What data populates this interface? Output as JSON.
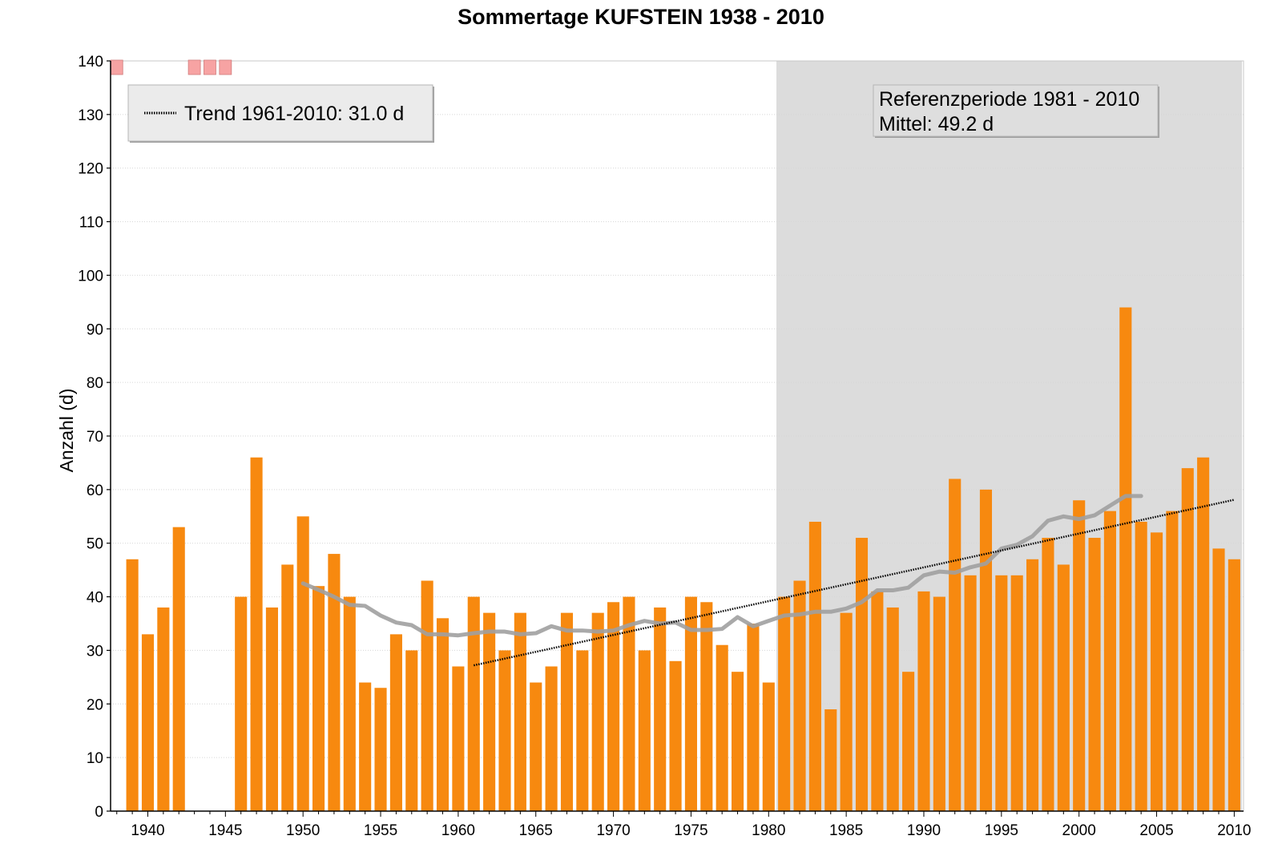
{
  "chart_data": {
    "type": "bar",
    "title": "Sommertage KUFSTEIN 1938 - 2010",
    "ylabel": "Anzahl (d)",
    "xlabel": "",
    "xlim": [
      1937.6,
      2010.6
    ],
    "ylim": [
      0,
      140
    ],
    "yticks": [
      0,
      10,
      20,
      30,
      40,
      50,
      60,
      70,
      80,
      90,
      100,
      110,
      120,
      130,
      140
    ],
    "xticks": [
      1940,
      1945,
      1950,
      1955,
      1960,
      1965,
      1970,
      1975,
      1980,
      1985,
      1990,
      1995,
      2000,
      2005,
      2010
    ],
    "grid": true,
    "bar_color": "#f7890f",
    "missing_color": "#f7a3a3",
    "missing_years": [
      1938,
      1943,
      1944,
      1945
    ],
    "reference_period": {
      "from": 1981,
      "to": 2010,
      "label": "Referenzperiode 1981 - 2010",
      "mean_label": "Mittel: 49.2 d",
      "shade_color": "#dcdcdc"
    },
    "legend": {
      "label": "Trend 1961-2010: 31.0 d",
      "position": "top-left"
    },
    "bars": [
      {
        "x": 1939,
        "y": 47
      },
      {
        "x": 1940,
        "y": 33
      },
      {
        "x": 1941,
        "y": 38
      },
      {
        "x": 1942,
        "y": 53
      },
      {
        "x": 1946,
        "y": 40
      },
      {
        "x": 1947,
        "y": 66
      },
      {
        "x": 1948,
        "y": 38
      },
      {
        "x": 1949,
        "y": 46
      },
      {
        "x": 1950,
        "y": 55
      },
      {
        "x": 1951,
        "y": 42
      },
      {
        "x": 1952,
        "y": 48
      },
      {
        "x": 1953,
        "y": 40
      },
      {
        "x": 1954,
        "y": 24
      },
      {
        "x": 1955,
        "y": 23
      },
      {
        "x": 1956,
        "y": 33
      },
      {
        "x": 1957,
        "y": 30
      },
      {
        "x": 1958,
        "y": 43
      },
      {
        "x": 1959,
        "y": 36
      },
      {
        "x": 1960,
        "y": 27
      },
      {
        "x": 1961,
        "y": 40
      },
      {
        "x": 1962,
        "y": 37
      },
      {
        "x": 1963,
        "y": 30
      },
      {
        "x": 1964,
        "y": 37
      },
      {
        "x": 1965,
        "y": 24
      },
      {
        "x": 1966,
        "y": 27
      },
      {
        "x": 1967,
        "y": 37
      },
      {
        "x": 1968,
        "y": 30
      },
      {
        "x": 1969,
        "y": 37
      },
      {
        "x": 1970,
        "y": 39
      },
      {
        "x": 1971,
        "y": 40
      },
      {
        "x": 1972,
        "y": 30
      },
      {
        "x": 1973,
        "y": 38
      },
      {
        "x": 1974,
        "y": 28
      },
      {
        "x": 1975,
        "y": 40
      },
      {
        "x": 1976,
        "y": 39
      },
      {
        "x": 1977,
        "y": 31
      },
      {
        "x": 1978,
        "y": 26
      },
      {
        "x": 1979,
        "y": 35
      },
      {
        "x": 1980,
        "y": 24
      },
      {
        "x": 1981,
        "y": 40
      },
      {
        "x": 1982,
        "y": 43
      },
      {
        "x": 1983,
        "y": 54
      },
      {
        "x": 1984,
        "y": 19
      },
      {
        "x": 1985,
        "y": 37
      },
      {
        "x": 1986,
        "y": 51
      },
      {
        "x": 1987,
        "y": 41
      },
      {
        "x": 1988,
        "y": 38
      },
      {
        "x": 1989,
        "y": 26
      },
      {
        "x": 1990,
        "y": 41
      },
      {
        "x": 1991,
        "y": 40
      },
      {
        "x": 1992,
        "y": 62
      },
      {
        "x": 1993,
        "y": 44
      },
      {
        "x": 1994,
        "y": 60
      },
      {
        "x": 1995,
        "y": 44
      },
      {
        "x": 1996,
        "y": 44
      },
      {
        "x": 1997,
        "y": 47
      },
      {
        "x": 1998,
        "y": 51
      },
      {
        "x": 1999,
        "y": 46
      },
      {
        "x": 2000,
        "y": 58
      },
      {
        "x": 2001,
        "y": 51
      },
      {
        "x": 2002,
        "y": 56
      },
      {
        "x": 2003,
        "y": 94
      },
      {
        "x": 2004,
        "y": 54
      },
      {
        "x": 2005,
        "y": 52
      },
      {
        "x": 2006,
        "y": 56
      },
      {
        "x": 2007,
        "y": 64
      },
      {
        "x": 2008,
        "y": 66
      },
      {
        "x": 2009,
        "y": 49
      },
      {
        "x": 2010,
        "y": 47
      }
    ],
    "smoothed": {
      "color": "#a0a0a0",
      "points": [
        [
          1950,
          42.5
        ],
        [
          1951,
          41.3
        ],
        [
          1952,
          40.0
        ],
        [
          1953,
          38.5
        ],
        [
          1954,
          38.3
        ],
        [
          1955,
          36.5
        ],
        [
          1956,
          35.2
        ],
        [
          1957,
          34.7
        ],
        [
          1958,
          33.0
        ],
        [
          1959,
          33.0
        ],
        [
          1960,
          32.8
        ],
        [
          1961,
          33.2
        ],
        [
          1962,
          33.5
        ],
        [
          1963,
          33.5
        ],
        [
          1964,
          33.0
        ],
        [
          1965,
          33.2
        ],
        [
          1966,
          34.5
        ],
        [
          1967,
          33.7
        ],
        [
          1968,
          33.7
        ],
        [
          1969,
          33.5
        ],
        [
          1970,
          33.7
        ],
        [
          1971,
          34.7
        ],
        [
          1972,
          35.5
        ],
        [
          1973,
          35.0
        ],
        [
          1974,
          35.2
        ],
        [
          1975,
          33.8
        ],
        [
          1976,
          33.8
        ],
        [
          1977,
          34.0
        ],
        [
          1978,
          36.2
        ],
        [
          1979,
          34.5
        ],
        [
          1980,
          35.5
        ],
        [
          1981,
          36.5
        ],
        [
          1982,
          36.7
        ],
        [
          1983,
          37.2
        ],
        [
          1984,
          37.2
        ],
        [
          1985,
          37.8
        ],
        [
          1986,
          39.0
        ],
        [
          1987,
          41.2
        ],
        [
          1988,
          41.2
        ],
        [
          1989,
          41.7
        ],
        [
          1990,
          44.0
        ],
        [
          1991,
          44.7
        ],
        [
          1992,
          44.5
        ],
        [
          1993,
          45.5
        ],
        [
          1994,
          46.2
        ],
        [
          1995,
          49.0
        ],
        [
          1996,
          49.7
        ],
        [
          1997,
          51.3
        ],
        [
          1998,
          54.2
        ],
        [
          1999,
          55.0
        ],
        [
          2000,
          54.5
        ],
        [
          2001,
          55.2
        ],
        [
          2002,
          57.0
        ],
        [
          2003,
          58.8
        ],
        [
          2004,
          58.8
        ]
      ]
    },
    "trend": {
      "from": [
        1961,
        27.2
      ],
      "to": [
        2010,
        58.1
      ]
    }
  }
}
